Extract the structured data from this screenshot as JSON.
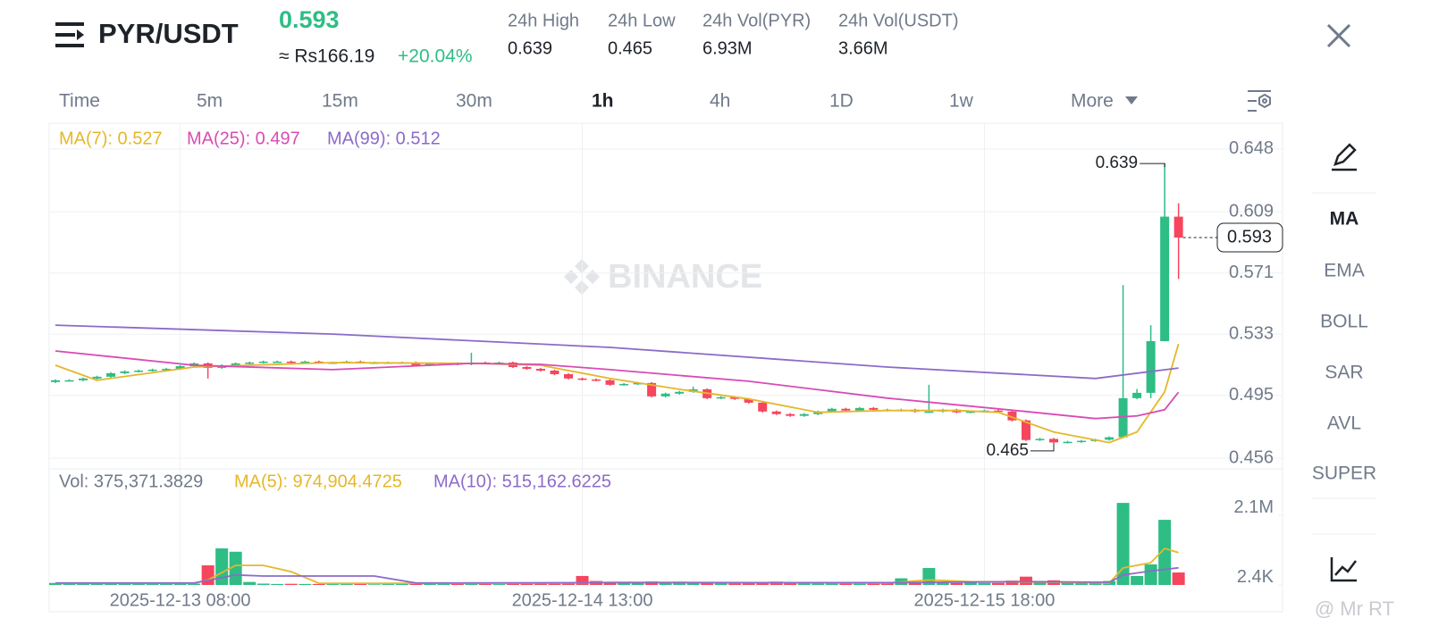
{
  "header": {
    "pair": "PYR/USDT",
    "price": "0.593",
    "fiat": "≈ Rs166.19",
    "change": "+20.04%",
    "stats": [
      {
        "label": "24h High",
        "value": "0.639"
      },
      {
        "label": "24h Low",
        "value": "0.465"
      },
      {
        "label": "24h Vol(PYR)",
        "value": "6.93M"
      },
      {
        "label": "24h Vol(USDT)",
        "value": "3.66M"
      }
    ]
  },
  "timeframes": [
    "Time",
    "5m",
    "15m",
    "30m",
    "1h",
    "4h",
    "1D",
    "1w",
    "More"
  ],
  "indicators": [
    "MA",
    "EMA",
    "BOLL",
    "SAR",
    "AVL",
    "SUPER"
  ],
  "watermark": "BINANCE",
  "credit": "@ Mr RT",
  "chart_data": [
    {
      "type": "candlestick",
      "up_color": "#2ebd85",
      "down_color": "#f6465d",
      "xlim": [
        -0.45,
        88.5
      ],
      "xticks": [
        {
          "value": 9,
          "label": "2025-12-13 08:00"
        },
        {
          "value": 38,
          "label": "2025-12-14 13:00"
        },
        {
          "value": 67,
          "label": "2025-12-15 18:00"
        }
      ],
      "ylim": [
        0.4494,
        0.664
      ],
      "yticks": [
        0.648,
        0.609,
        0.571,
        0.533,
        0.495,
        0.456
      ],
      "grid": true,
      "max_label": 0.639,
      "min_label": 0.465,
      "last_price": 0.593,
      "open": [
        0.5033,
        0.5044,
        0.5044,
        0.5055,
        0.5066,
        0.5088,
        0.5099,
        0.5104,
        0.511,
        0.5115,
        0.5132,
        0.5149,
        0.5121,
        0.5137,
        0.5149,
        0.5154,
        0.516,
        0.516,
        0.5154,
        0.516,
        0.5154,
        0.5154,
        0.516,
        0.5154,
        0.5154,
        0.5154,
        0.5154,
        0.5137,
        0.5149,
        0.5149,
        0.5143,
        0.5154,
        0.5149,
        0.5154,
        0.5126,
        0.5115,
        0.5104,
        0.5082,
        0.5055,
        0.5049,
        0.5044,
        0.5016,
        0.5021,
        0.5027,
        0.4944,
        0.4961,
        0.4972,
        0.4988,
        0.4933,
        0.4939,
        0.4928,
        0.4905,
        0.485,
        0.4834,
        0.4823,
        0.4834,
        0.485,
        0.4867,
        0.4856,
        0.4872,
        0.4861,
        0.4856,
        0.4861,
        0.485,
        0.485,
        0.4861,
        0.4845,
        0.485,
        0.4856,
        0.485,
        0.4795,
        0.4673,
        0.468,
        0.4658,
        0.4662,
        0.4668,
        0.4675,
        0.469,
        0.4933,
        0.4966,
        0.5287,
        0.606
      ],
      "high": [
        0.505,
        0.505,
        0.5061,
        0.5072,
        0.5094,
        0.5105,
        0.511,
        0.5116,
        0.5121,
        0.5138,
        0.5155,
        0.5155,
        0.5143,
        0.5155,
        0.516,
        0.5166,
        0.5166,
        0.5166,
        0.5166,
        0.5166,
        0.516,
        0.5166,
        0.5166,
        0.516,
        0.516,
        0.516,
        0.516,
        0.5155,
        0.5155,
        0.5155,
        0.5215,
        0.516,
        0.516,
        0.516,
        0.5132,
        0.5121,
        0.511,
        0.5088,
        0.5061,
        0.5055,
        0.505,
        0.5027,
        0.5033,
        0.5033,
        0.4967,
        0.4978,
        0.5005,
        0.4994,
        0.4945,
        0.4945,
        0.4934,
        0.4911,
        0.4856,
        0.484,
        0.484,
        0.4856,
        0.4873,
        0.4873,
        0.4878,
        0.4878,
        0.4867,
        0.4867,
        0.4867,
        0.5016,
        0.4867,
        0.4867,
        0.4856,
        0.4862,
        0.4862,
        0.4856,
        0.4801,
        0.4686,
        0.4686,
        0.4668,
        0.4674,
        0.4681,
        0.4696,
        0.5635,
        0.499,
        0.5386,
        0.639,
        0.6143
      ],
      "low": [
        0.5027,
        0.5038,
        0.5038,
        0.5049,
        0.506,
        0.5082,
        0.5093,
        0.5098,
        0.5104,
        0.5109,
        0.5126,
        0.5055,
        0.5115,
        0.5131,
        0.5143,
        0.5148,
        0.5154,
        0.5148,
        0.5148,
        0.5148,
        0.5148,
        0.5148,
        0.5148,
        0.5148,
        0.5148,
        0.5148,
        0.5131,
        0.5131,
        0.5143,
        0.5137,
        0.5137,
        0.5143,
        0.5143,
        0.512,
        0.5109,
        0.5098,
        0.5076,
        0.5049,
        0.5043,
        0.5038,
        0.501,
        0.501,
        0.5015,
        0.4938,
        0.4938,
        0.4955,
        0.4966,
        0.4927,
        0.4927,
        0.4922,
        0.4899,
        0.4844,
        0.4828,
        0.4817,
        0.4817,
        0.4828,
        0.4844,
        0.485,
        0.485,
        0.4855,
        0.485,
        0.485,
        0.4844,
        0.4844,
        0.4844,
        0.4839,
        0.4839,
        0.4844,
        0.4844,
        0.4789,
        0.4667,
        0.4667,
        0.465,
        0.4652,
        0.4656,
        0.4662,
        0.4669,
        0.4684,
        0.4927,
        0.4933,
        0.5287,
        0.5673
      ],
      "close": [
        0.5044,
        0.5044,
        0.5055,
        0.5066,
        0.5088,
        0.5099,
        0.5104,
        0.511,
        0.5115,
        0.5132,
        0.5149,
        0.5121,
        0.5137,
        0.5149,
        0.5154,
        0.516,
        0.516,
        0.5154,
        0.516,
        0.5154,
        0.5154,
        0.516,
        0.5154,
        0.5154,
        0.5154,
        0.5154,
        0.5137,
        0.5149,
        0.5149,
        0.5143,
        0.5154,
        0.5149,
        0.5154,
        0.5126,
        0.5115,
        0.5104,
        0.5082,
        0.5055,
        0.5049,
        0.5044,
        0.5016,
        0.5021,
        0.5027,
        0.4944,
        0.4961,
        0.4972,
        0.4988,
        0.4933,
        0.4939,
        0.4928,
        0.4905,
        0.485,
        0.4834,
        0.4823,
        0.4834,
        0.485,
        0.4867,
        0.4856,
        0.4872,
        0.4861,
        0.4856,
        0.4861,
        0.485,
        0.485,
        0.4861,
        0.4845,
        0.485,
        0.4856,
        0.485,
        0.4795,
        0.4673,
        0.468,
        0.4658,
        0.4662,
        0.4668,
        0.4675,
        0.469,
        0.4933,
        0.4966,
        0.5287,
        0.606,
        0.593
      ],
      "lines": [
        {
          "name": "MA(7): 0.527",
          "color": "#e5b72a",
          "x": [
            0,
            3,
            10,
            20,
            30,
            35,
            40,
            45,
            50,
            55,
            60,
            65,
            68,
            72,
            76,
            78,
            80,
            81
          ],
          "values": [
            0.5137,
            0.5044,
            0.5126,
            0.5154,
            0.5149,
            0.5137,
            0.5055,
            0.4988,
            0.4928,
            0.4845,
            0.4856,
            0.4856,
            0.4845,
            0.4723,
            0.4657,
            0.4723,
            0.4972,
            0.527
          ]
        },
        {
          "name": "MA(25): 0.497",
          "color": "#d94bb5",
          "x": [
            0,
            10,
            20,
            30,
            35,
            40,
            50,
            60,
            70,
            75,
            78,
            80,
            81
          ],
          "values": [
            0.5226,
            0.5137,
            0.511,
            0.5149,
            0.5143,
            0.511,
            0.5038,
            0.4933,
            0.485,
            0.4806,
            0.4823,
            0.4861,
            0.497
          ]
        },
        {
          "name": "MA(99): 0.512",
          "color": "#8c6bc8",
          "x": [
            0,
            20,
            40,
            60,
            75,
            81
          ],
          "values": [
            0.5386,
            0.5331,
            0.5248,
            0.5126,
            0.5055,
            0.512
          ]
        }
      ]
    },
    {
      "type": "bar",
      "title": "Vol: 375,371.3829",
      "ylim": [
        0,
        3360000
      ],
      "yticks": [
        {
          "value": 2100000,
          "label": "2.1M"
        },
        {
          "value": 2400,
          "label": "2.4K"
        }
      ],
      "values": [
        60000,
        55000,
        50000,
        45000,
        40000,
        50000,
        45000,
        40000,
        50000,
        60000,
        40000,
        590000,
        1100000,
        1000000,
        90000,
        40000,
        30000,
        35000,
        30000,
        30000,
        25000,
        25000,
        30000,
        20000,
        25000,
        30000,
        35000,
        30000,
        30000,
        40000,
        60000,
        30000,
        25000,
        60000,
        50000,
        70000,
        60000,
        80000,
        270000,
        120000,
        90000,
        60000,
        70000,
        110000,
        80000,
        100000,
        70000,
        90000,
        60000,
        50000,
        80000,
        90000,
        100000,
        90000,
        60000,
        70000,
        60000,
        50000,
        60000,
        70000,
        80000,
        200000,
        90000,
        510000,
        100000,
        60000,
        70000,
        60000,
        60000,
        130000,
        250000,
        120000,
        140000,
        60000,
        80000,
        100000,
        120000,
        2470000,
        270000,
        620000,
        1960000,
        375371.3829
      ],
      "lines": [
        {
          "name": "MA(5): 974,904.4725",
          "color": "#e5b72a",
          "x": [
            0,
            10,
            11,
            13,
            15,
            17,
            19,
            30,
            37,
            40,
            60,
            63,
            66,
            70,
            75,
            76,
            77,
            79,
            80,
            81
          ],
          "values": [
            50000,
            50000,
            150000,
            590000,
            590000,
            400000,
            50000,
            50000,
            60000,
            80000,
            60000,
            150000,
            100000,
            90000,
            70000,
            60000,
            510000,
            670000,
            1100000,
            974904.4725
          ]
        },
        {
          "name": "MA(10): 515,162.6225",
          "color": "#8c6bc8",
          "x": [
            0,
            10,
            13,
            15,
            23,
            26,
            40,
            60,
            70,
            76,
            77,
            79,
            81
          ],
          "values": [
            60000,
            60000,
            300000,
            270000,
            270000,
            60000,
            70000,
            70000,
            100000,
            80000,
            300000,
            420000,
            515162.6225
          ]
        }
      ]
    }
  ]
}
